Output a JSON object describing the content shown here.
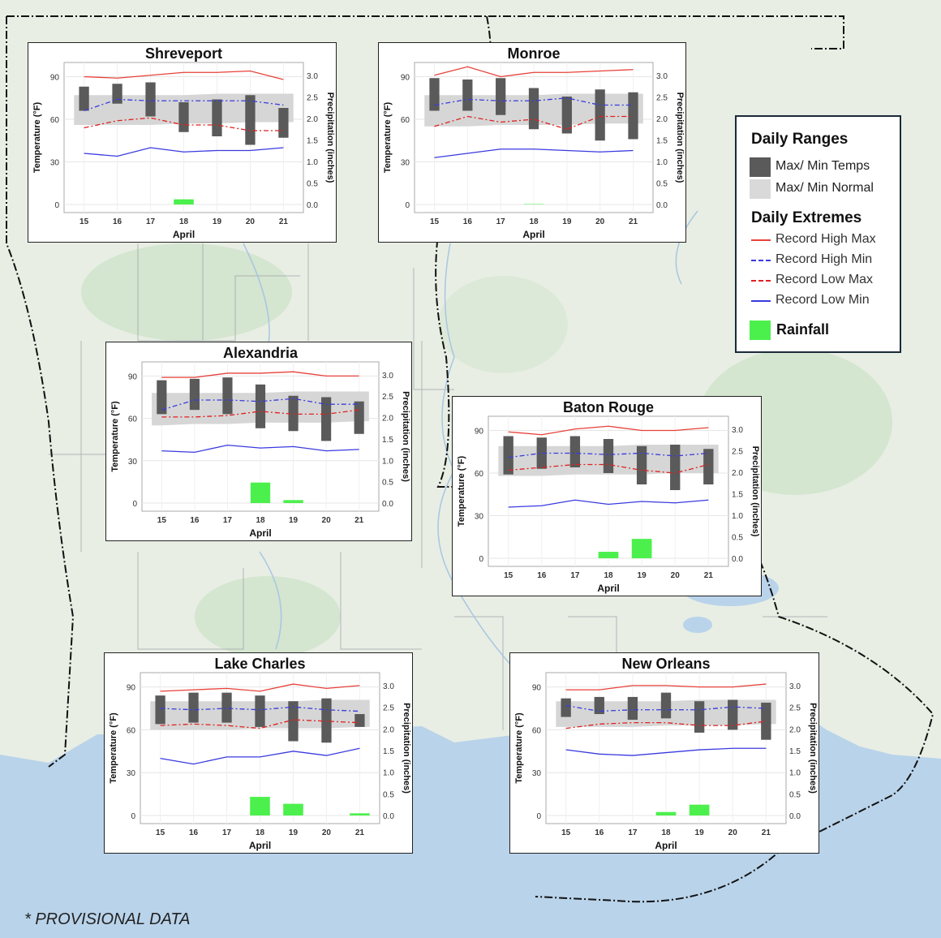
{
  "x_label": "April",
  "y_left_label": "Temperature (°F)",
  "y_right_label": "Precipitation (inches)",
  "legend": {
    "ranges_title": "Daily Ranges",
    "temps_label": "Max/ Min Temps",
    "normal_label": "Max/ Min Normal",
    "extremes_title": "Daily Extremes",
    "record_high_max": "Record High Max",
    "record_high_min": "Record High Min",
    "record_low_max": "Record Low Max",
    "record_low_min": "Record Low Min",
    "rainfall_label": "Rainfall"
  },
  "colors": {
    "record_high_max": "#e8413a",
    "record_high_min": "#3a3ae0",
    "record_low_max": "#e02020",
    "record_low_min": "#3a3ae0",
    "temps_bar": "#5a5a5a",
    "normal_band": "#d6d6d6",
    "rainfall": "#4cf04c"
  },
  "note": "* PROVISIONAL DATA",
  "chart_data": [
    {
      "type": "bar",
      "title": "Shreveport",
      "categories": [
        "15",
        "16",
        "17",
        "18",
        "19",
        "20",
        "21"
      ],
      "ylim": [
        0,
        100
      ],
      "y2lim": [
        0,
        3.3
      ],
      "temp_max": [
        83,
        85,
        86,
        72,
        74,
        77,
        68
      ],
      "temp_min": [
        66,
        71,
        62,
        51,
        48,
        42,
        47
      ],
      "normal_max": [
        77,
        77,
        77,
        77,
        78,
        78,
        78
      ],
      "normal_min": [
        56,
        56,
        56,
        57,
        57,
        58,
        58
      ],
      "record_high_max": [
        90,
        89,
        91,
        93,
        93,
        94,
        88
      ],
      "record_high_min": [
        66,
        74,
        73,
        73,
        73,
        73,
        70
      ],
      "record_low_max": [
        54,
        59,
        61,
        56,
        56,
        52,
        52
      ],
      "record_low_min": [
        36,
        34,
        40,
        37,
        38,
        38,
        40
      ],
      "rainfall": [
        0,
        0,
        0,
        0.12,
        0,
        0,
        0
      ]
    },
    {
      "type": "bar",
      "title": "Monroe",
      "categories": [
        "15",
        "16",
        "17",
        "18",
        "19",
        "20",
        "21"
      ],
      "ylim": [
        0,
        100
      ],
      "y2lim": [
        0,
        3.3
      ],
      "temp_max": [
        89,
        88,
        89,
        82,
        76,
        81,
        79
      ],
      "temp_min": [
        66,
        66,
        63,
        53,
        50,
        45,
        46
      ],
      "normal_max": [
        77,
        77,
        77,
        77,
        78,
        78,
        78
      ],
      "normal_min": [
        55,
        55,
        56,
        56,
        56,
        57,
        57
      ],
      "record_high_max": [
        91,
        97,
        90,
        93,
        93,
        94,
        95
      ],
      "record_high_min": [
        70,
        74,
        73,
        73,
        75,
        70,
        70
      ],
      "record_low_max": [
        55,
        62,
        58,
        60,
        53,
        62,
        62
      ],
      "record_low_min": [
        33,
        36,
        39,
        39,
        38,
        37,
        38
      ],
      "rainfall": [
        0,
        0,
        0,
        0.01,
        0,
        0,
        0
      ]
    },
    {
      "type": "bar",
      "title": "Alexandria",
      "categories": [
        "15",
        "16",
        "17",
        "18",
        "19",
        "20",
        "21"
      ],
      "ylim": [
        0,
        100
      ],
      "y2lim": [
        0,
        3.3
      ],
      "temp_max": [
        87,
        88,
        89,
        84,
        76,
        75,
        72
      ],
      "temp_min": [
        63,
        66,
        63,
        53,
        51,
        44,
        49
      ],
      "normal_max": [
        78,
        78,
        78,
        78,
        79,
        79,
        79
      ],
      "normal_min": [
        55,
        56,
        56,
        57,
        57,
        57,
        58
      ],
      "record_high_max": [
        89,
        89,
        92,
        92,
        93,
        90,
        90
      ],
      "record_high_min": [
        66,
        73,
        73,
        72,
        74,
        70,
        70
      ],
      "record_low_max": [
        61,
        61,
        62,
        65,
        63,
        63,
        66
      ],
      "record_low_min": [
        37,
        36,
        41,
        39,
        40,
        37,
        38
      ],
      "rainfall": [
        0,
        0,
        0,
        0.48,
        0.07,
        0,
        0
      ]
    },
    {
      "type": "bar",
      "title": "Baton Rouge",
      "categories": [
        "15",
        "16",
        "17",
        "18",
        "19",
        "20",
        "21"
      ],
      "ylim": [
        0,
        100
      ],
      "y2lim": [
        0,
        3.3
      ],
      "temp_max": [
        86,
        85,
        86,
        84,
        79,
        80,
        77
      ],
      "temp_min": [
        59,
        63,
        64,
        60,
        52,
        48,
        52
      ],
      "normal_max": [
        79,
        79,
        79,
        79,
        80,
        80,
        80
      ],
      "normal_min": [
        58,
        58,
        59,
        59,
        59,
        60,
        60
      ],
      "record_high_max": [
        89,
        87,
        91,
        93,
        90,
        90,
        92
      ],
      "record_high_min": [
        71,
        74,
        74,
        73,
        74,
        72,
        74
      ],
      "record_low_max": [
        62,
        64,
        66,
        66,
        62,
        60,
        66
      ],
      "record_low_min": [
        36,
        37,
        41,
        38,
        40,
        39,
        41
      ],
      "rainfall": [
        0,
        0,
        0,
        0.15,
        0.45,
        0,
        0
      ]
    },
    {
      "type": "bar",
      "title": "Lake Charles",
      "categories": [
        "15",
        "16",
        "17",
        "18",
        "19",
        "20",
        "21"
      ],
      "ylim": [
        0,
        100
      ],
      "y2lim": [
        0,
        3.3
      ],
      "temp_max": [
        84,
        86,
        86,
        84,
        80,
        82,
        71
      ],
      "temp_min": [
        64,
        65,
        65,
        62,
        52,
        51,
        62
      ],
      "normal_max": [
        80,
        80,
        80,
        80,
        80,
        81,
        81
      ],
      "normal_min": [
        60,
        60,
        60,
        61,
        61,
        61,
        62
      ],
      "record_high_max": [
        87,
        88,
        89,
        87,
        92,
        89,
        91
      ],
      "record_high_min": [
        75,
        74,
        75,
        74,
        76,
        74,
        73
      ],
      "record_low_max": [
        63,
        64,
        63,
        61,
        67,
        66,
        65
      ],
      "record_low_min": [
        40,
        36,
        41,
        41,
        45,
        42,
        47
      ],
      "rainfall": [
        0,
        0,
        0,
        0.43,
        0.27,
        0,
        0.05
      ]
    },
    {
      "type": "bar",
      "title": "New Orleans",
      "categories": [
        "15",
        "16",
        "17",
        "18",
        "19",
        "20",
        "21"
      ],
      "ylim": [
        0,
        100
      ],
      "y2lim": [
        0,
        3.3
      ],
      "temp_max": [
        82,
        83,
        83,
        86,
        80,
        81,
        79
      ],
      "temp_min": [
        69,
        71,
        67,
        68,
        58,
        60,
        53
      ],
      "normal_max": [
        80,
        80,
        80,
        80,
        81,
        81,
        81
      ],
      "normal_min": [
        62,
        62,
        62,
        63,
        63,
        63,
        64
      ],
      "record_high_max": [
        88,
        88,
        91,
        91,
        90,
        90,
        92
      ],
      "record_high_min": [
        77,
        73,
        74,
        74,
        74,
        76,
        75
      ],
      "record_low_max": [
        61,
        64,
        65,
        65,
        63,
        63,
        66
      ],
      "record_low_min": [
        46,
        43,
        42,
        44,
        46,
        47,
        47
      ],
      "rainfall": [
        0,
        0,
        0,
        0.08,
        0.25,
        0,
        0
      ]
    }
  ]
}
